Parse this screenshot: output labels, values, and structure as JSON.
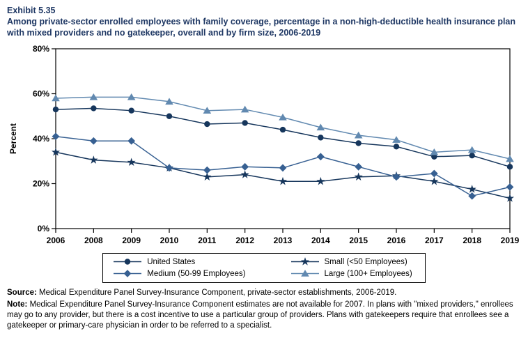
{
  "header": {
    "exhibit": "Exhibit 5.35",
    "title": "Among private-sector enrolled employees with family coverage, percentage in a non-high-deductible health insurance plan with mixed providers and no gatekeeper, overall and by firm size, 2006-2019"
  },
  "chart_data": {
    "type": "line",
    "title": "Among private-sector enrolled employees with family coverage, percentage in a non-high-deductible health insurance plan with mixed providers and no gatekeeper, overall and by firm size, 2006-2019",
    "categories": [
      "2006",
      "2008",
      "2009",
      "2010",
      "2011",
      "2012",
      "2013",
      "2014",
      "2015",
      "2016",
      "2017",
      "2018",
      "2019"
    ],
    "xlabel": "",
    "ylabel": "Percent",
    "ylim": [
      0,
      80
    ],
    "yticks": [
      {
        "value": 0,
        "label": "0%"
      },
      {
        "value": 20,
        "label": "20%"
      },
      {
        "value": 40,
        "label": "40%"
      },
      {
        "value": 60,
        "label": "60%"
      },
      {
        "value": 80,
        "label": "80%"
      }
    ],
    "grid": false,
    "legend_position": "bottom",
    "series": [
      {
        "name": "United States",
        "marker": "circle",
        "color": "#16365C",
        "values": [
          53,
          53.5,
          52.5,
          50,
          46.5,
          47,
          44,
          40.5,
          38,
          36.5,
          32,
          32.5,
          27.5
        ]
      },
      {
        "name": "Small (<50 Employees)",
        "marker": "star",
        "color": "#16365C",
        "values": [
          34,
          30.5,
          29.5,
          27,
          23,
          24,
          21,
          21,
          23,
          23.5,
          21,
          17.5,
          13.5
        ]
      },
      {
        "name": "Medium (50-99 Employees)",
        "marker": "diamond",
        "color": "#376092",
        "values": [
          41,
          39,
          39,
          27,
          26,
          27.5,
          27,
          32,
          27.5,
          23,
          24.5,
          14.5,
          18.5
        ]
      },
      {
        "name": "Large (100+ Employees)",
        "marker": "triangle",
        "color": "#6189B0",
        "values": [
          58,
          58.5,
          58.5,
          56.5,
          52.5,
          53,
          49.5,
          45,
          41.5,
          39.5,
          34,
          35,
          31
        ]
      }
    ]
  },
  "footer": {
    "source_label": "Source:",
    "source_text": " Medical Expenditure Panel Survey-Insurance Component, private-sector establishments, 2006-2019.",
    "note_label": "Note:",
    "note_text": " Medical Expenditure Panel Survey-Insurance Component estimates are not available for 2007. In plans with \"mixed providers,\" enrollees may go to any provider, but there is a cost incentive to use a particular group of providers. Plans with gatekeepers require that enrollees see a gatekeeper or primary-care physician in order to be referred to a specialist."
  }
}
